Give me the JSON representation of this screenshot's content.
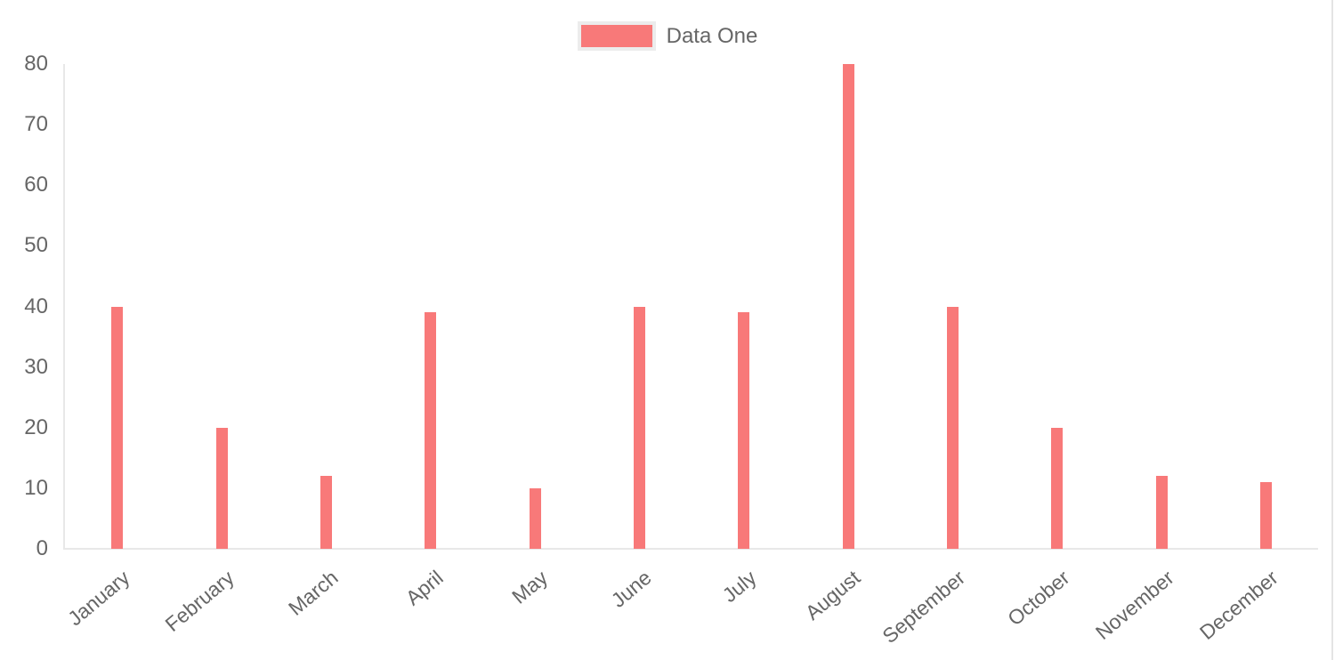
{
  "page": {
    "background": "#ffffff"
  },
  "legend": {
    "position": "top",
    "items": [
      {
        "label": "Data One",
        "swatch_color": "#f87979",
        "swatch_border_color": "#ececec"
      }
    ]
  },
  "chart_data": {
    "type": "bar",
    "title": "",
    "xlabel": "",
    "ylabel": "",
    "categories": [
      "January",
      "February",
      "March",
      "April",
      "May",
      "June",
      "July",
      "August",
      "September",
      "October",
      "November",
      "December"
    ],
    "series": [
      {
        "name": "Data One",
        "color": "#f87979",
        "values": [
          40,
          20,
          12,
          39,
          10,
          40,
          39,
          80,
          40,
          20,
          12,
          11
        ]
      }
    ],
    "ylim": [
      0,
      80
    ],
    "ytick_step": 10,
    "ytick_labels": [
      "0",
      "10",
      "20",
      "30",
      "40",
      "50",
      "60",
      "70",
      "80"
    ],
    "grid": false,
    "legend_position": "top",
    "axis_color": "#e8e8e8",
    "text_color": "#666666",
    "x_label_rotation_deg": -40
  }
}
